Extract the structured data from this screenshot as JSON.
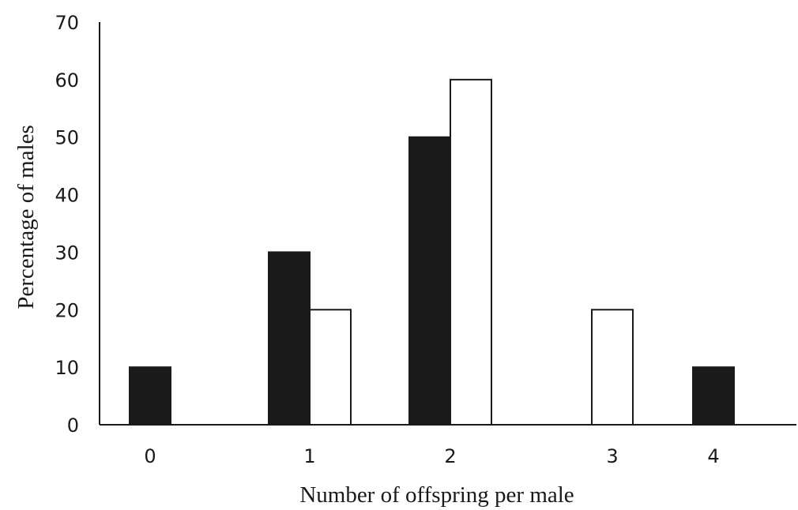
{
  "chart_data": {
    "type": "bar",
    "title": "",
    "xlabel": "Number of offspring per male",
    "ylabel": "Percentage of males",
    "ylim": [
      0,
      70
    ],
    "y_ticks": [
      "0",
      "10",
      "20",
      "30",
      "40",
      "50",
      "60",
      "70"
    ],
    "categories": [
      "0",
      "1",
      "2",
      "3",
      "4"
    ],
    "series": [
      {
        "fill": "#1a1a1a",
        "values": [
          10,
          30,
          50,
          0,
          10
        ]
      },
      {
        "fill": "#ffffff",
        "values": [
          0,
          20,
          60,
          20,
          0
        ]
      }
    ],
    "grid": false,
    "legend": "none"
  }
}
